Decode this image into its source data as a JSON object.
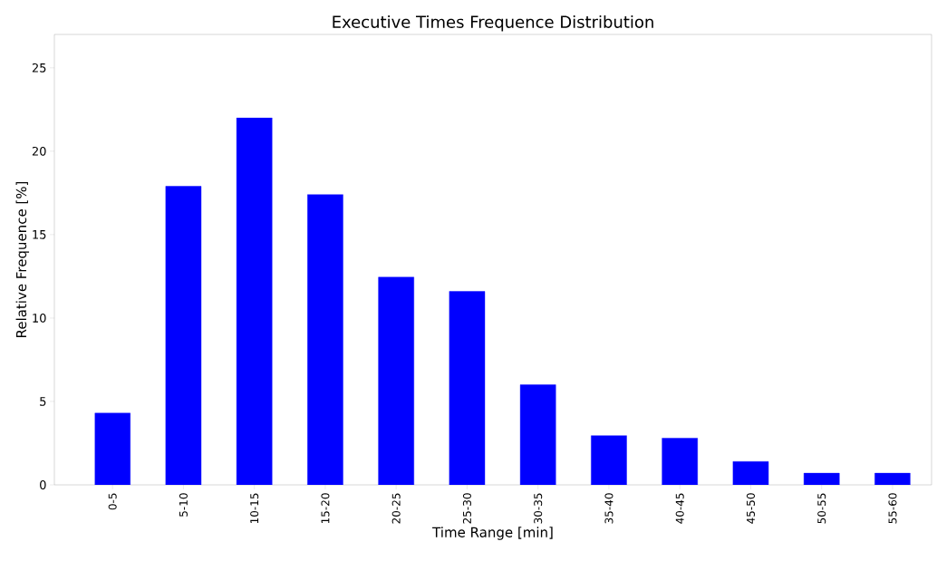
{
  "chart_data": {
    "type": "bar",
    "title": "Executive Times Frequence Distribution",
    "xlabel": "Time Range [min]",
    "ylabel": "Relative Frequence [%]",
    "categories": [
      "0-5",
      "5-10",
      "10-15",
      "15-20",
      "20-25",
      "25-30",
      "30-35",
      "35-40",
      "40-45",
      "45-50",
      "50-55",
      "55-60"
    ],
    "values": [
      4.3,
      17.9,
      22.0,
      17.4,
      12.45,
      11.6,
      6.0,
      2.95,
      2.8,
      1.4,
      0.7,
      0.7
    ],
    "color": "#0000ff",
    "ylim": [
      0,
      27
    ],
    "yticks": [
      0,
      5,
      10,
      15,
      20,
      25
    ],
    "grid": false
  }
}
